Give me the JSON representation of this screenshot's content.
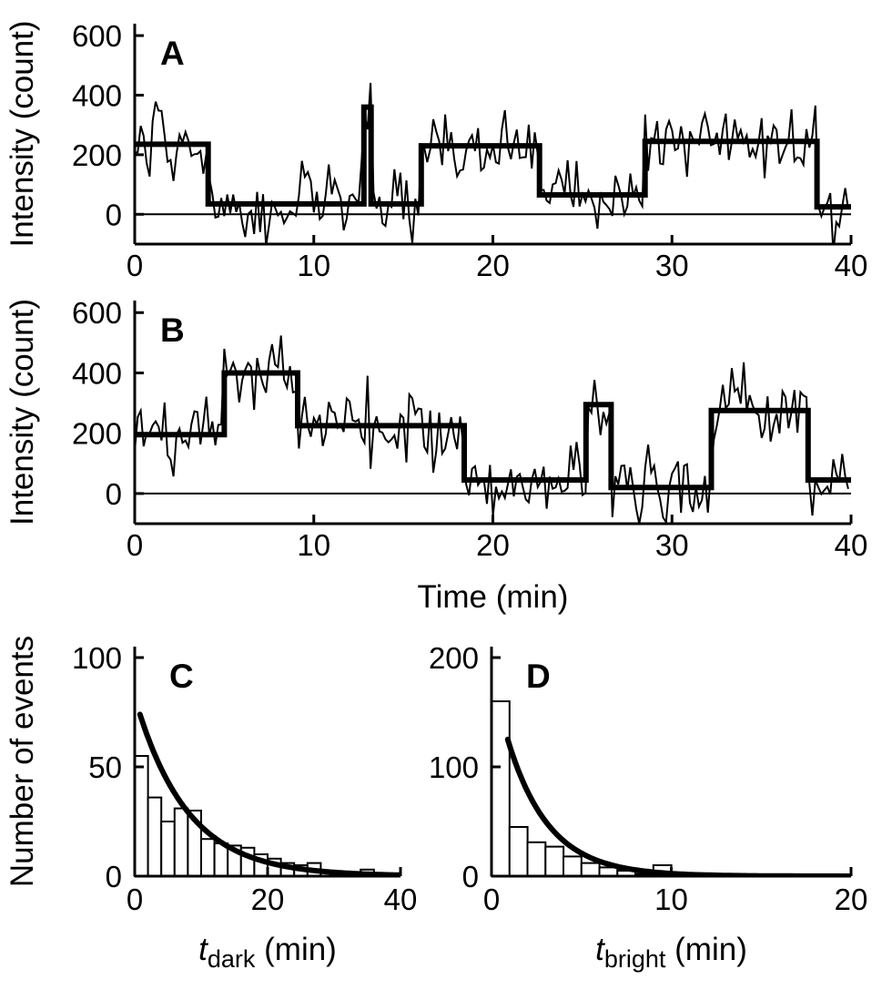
{
  "figure": {
    "background": "#ffffff",
    "ink_color": "#000000"
  },
  "chart_data": [
    {
      "id": "A",
      "type": "line",
      "panel_label": "A",
      "ylabel": "Intensity (count)",
      "xlabel": "",
      "xlim": [
        0,
        40
      ],
      "ylim": [
        -100,
        640
      ],
      "xticks": [
        0,
        10,
        20,
        30,
        40
      ],
      "yticks": [
        0,
        200,
        400,
        600
      ],
      "zero_line": 0,
      "noise_sd": 55,
      "noise_seed": 1337,
      "sample_dt": 0.1667,
      "fit_segments": [
        {
          "t0": 0.0,
          "t1": 4.1,
          "level": 235
        },
        {
          "t0": 4.1,
          "t1": 12.8,
          "level": 35
        },
        {
          "t0": 12.8,
          "t1": 13.2,
          "level": 360
        },
        {
          "t0": 13.2,
          "t1": 16.0,
          "level": 35
        },
        {
          "t0": 16.0,
          "t1": 22.6,
          "level": 230
        },
        {
          "t0": 22.6,
          "t1": 28.5,
          "level": 65
        },
        {
          "t0": 28.5,
          "t1": 38.1,
          "level": 245
        },
        {
          "t0": 38.1,
          "t1": 40.0,
          "level": 25
        }
      ]
    },
    {
      "id": "B",
      "type": "line",
      "panel_label": "B",
      "ylabel": "Intensity (count)",
      "xlabel": "Time (min)",
      "xlim": [
        0,
        40
      ],
      "ylim": [
        -100,
        640
      ],
      "xticks": [
        0,
        10,
        20,
        30,
        40
      ],
      "yticks": [
        0,
        200,
        400,
        600
      ],
      "zero_line": 0,
      "noise_sd": 60,
      "noise_seed": 90210,
      "sample_dt": 0.1667,
      "fit_segments": [
        {
          "t0": 0.0,
          "t1": 5.0,
          "level": 195
        },
        {
          "t0": 5.0,
          "t1": 9.1,
          "level": 400
        },
        {
          "t0": 9.1,
          "t1": 18.4,
          "level": 225
        },
        {
          "t0": 18.4,
          "t1": 25.2,
          "level": 45
        },
        {
          "t0": 25.2,
          "t1": 26.6,
          "level": 295
        },
        {
          "t0": 26.6,
          "t1": 32.2,
          "level": 20
        },
        {
          "t0": 32.2,
          "t1": 37.6,
          "level": 275
        },
        {
          "t0": 37.6,
          "t1": 40.0,
          "level": 45
        }
      ]
    },
    {
      "id": "C",
      "type": "bar",
      "panel_label": "C",
      "ylabel": "Number of events",
      "xlabel_parts": {
        "lead": "t",
        "sub": "dark",
        "rest": " (min)"
      },
      "xlim": [
        0,
        40
      ],
      "ylim": [
        0,
        105
      ],
      "xticks": [
        0,
        20,
        40
      ],
      "yticks": [
        0,
        50,
        100
      ],
      "bin_start": 0,
      "bin_width": 2,
      "values": [
        55,
        36,
        25,
        31,
        30,
        17,
        15,
        14,
        13,
        10,
        8,
        6,
        5,
        6,
        2,
        1,
        0,
        3,
        0,
        0
      ],
      "fit_exp": {
        "amplitude": 82,
        "tau": 7.8,
        "t_start": 0.8,
        "t_end": 40
      }
    },
    {
      "id": "D",
      "type": "bar",
      "panel_label": "D",
      "ylabel": "",
      "xlabel_parts": {
        "lead": "t",
        "sub": "bright",
        "rest": " (min)"
      },
      "xlim": [
        0,
        20
      ],
      "ylim": [
        0,
        210
      ],
      "xticks": [
        0,
        10,
        20
      ],
      "yticks": [
        0,
        100,
        200
      ],
      "bin_start": 0,
      "bin_width": 1,
      "values": [
        160,
        45,
        31,
        27,
        18,
        12,
        8,
        5,
        2,
        10,
        0,
        0,
        0,
        0,
        0,
        0,
        0,
        0,
        0,
        0
      ],
      "fit_exp": {
        "amplitude": 185,
        "tau": 2.3,
        "t_start": 0.9,
        "t_end": 20
      }
    }
  ]
}
